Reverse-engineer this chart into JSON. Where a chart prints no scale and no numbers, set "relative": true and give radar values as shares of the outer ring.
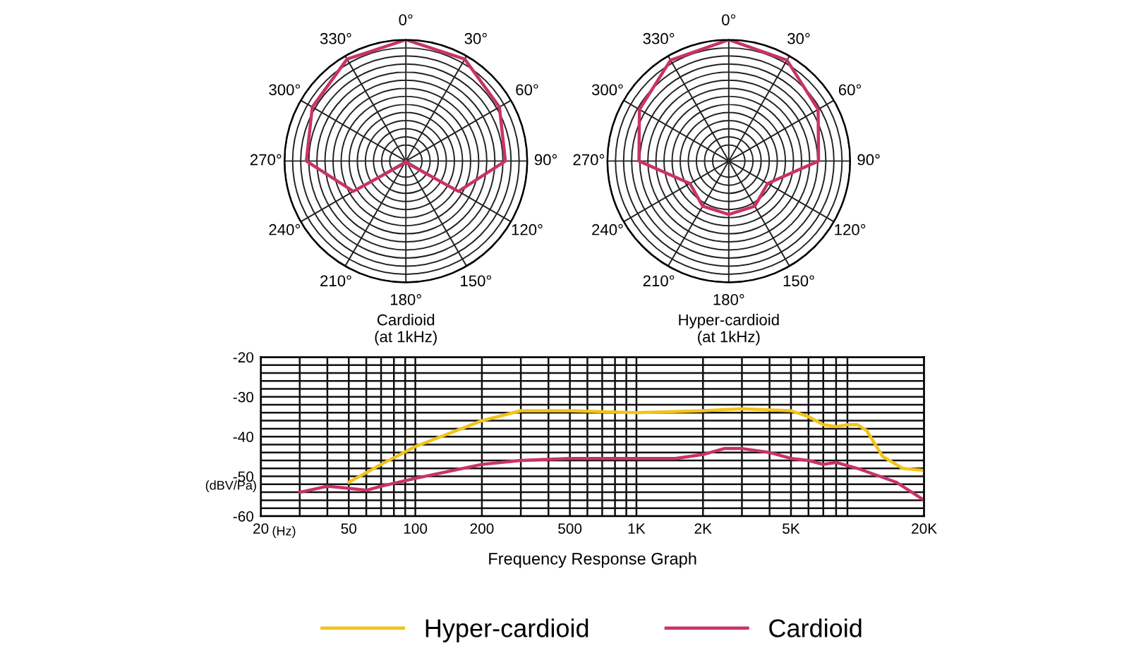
{
  "chart_data": [
    {
      "type": "radar",
      "title": "Cardioid",
      "subtitle": "(at 1kHz)",
      "relative": true,
      "grid": true,
      "categories": [
        "0°",
        "30°",
        "60°",
        "90°",
        "120°",
        "150°",
        "180°",
        "210°",
        "240°",
        "270°",
        "300°",
        "330°"
      ],
      "series": [
        {
          "color": "#c8326a",
          "values": [
            1,
            0.97,
            0.89,
            0.82,
            0.5,
            0.02,
            0,
            0.02,
            0.5,
            0.82,
            0.89,
            0.97
          ]
        }
      ]
    },
    {
      "type": "radar",
      "title": "Hyper-cardioid",
      "subtitle": "(at 1kHz)",
      "relative": true,
      "grid": true,
      "categories": [
        "0°",
        "30°",
        "60°",
        "90°",
        "120°",
        "150°",
        "180°",
        "210°",
        "240°",
        "270°",
        "300°",
        "330°"
      ],
      "series": [
        {
          "color": "#c8326a",
          "values": [
            1,
            0.96,
            0.85,
            0.74,
            0.37,
            0.43,
            0.44,
            0.43,
            0.37,
            0.74,
            0.85,
            0.96
          ]
        }
      ]
    },
    {
      "type": "line",
      "xlabel": "Frequency Response Graph",
      "ylabel": "(dBV/Pa)",
      "annotations": [
        "(Hz)"
      ],
      "log": "x",
      "grid": true,
      "legend": "bottom",
      "xlim": [
        20,
        20000
      ],
      "ylim": [
        -60,
        -20
      ],
      "xticks": [
        20,
        50,
        100,
        200,
        500,
        {
          "value": 1000,
          "label": "1K"
        },
        {
          "value": 2000,
          "label": "2K"
        },
        {
          "value": 5000,
          "label": "5K"
        },
        {
          "value": 20000,
          "label": "20K"
        }
      ],
      "yticks": [
        -20,
        -30,
        -40,
        -50,
        -60
      ],
      "series": [
        {
          "name": "Hyper-cardioid",
          "color": "#f0c419",
          "x": [
            50,
            70,
            100,
            200,
            300,
            500,
            1000,
            2000,
            3000,
            5000,
            6000,
            7000,
            8000,
            9000,
            10000,
            11000,
            13000,
            16000,
            20000
          ],
          "values": [
            -51.5,
            -47,
            -42.5,
            -36,
            -33.5,
            -33.5,
            -34,
            -33.5,
            -33,
            -33.5,
            -35,
            -37,
            -37.5,
            -37,
            -37,
            -38.5,
            -45,
            -48,
            -48.5
          ]
        },
        {
          "name": "Cardioid",
          "color": "#c8326a",
          "x": [
            30,
            40,
            50,
            60,
            70,
            100,
            200,
            300,
            500,
            1000,
            1500,
            2000,
            2500,
            3000,
            4000,
            5000,
            6000,
            7000,
            8000,
            10000,
            15000,
            20000
          ],
          "values": [
            -54,
            -52.5,
            -53,
            -53.5,
            -52.5,
            -50.5,
            -47,
            -46,
            -45.5,
            -45.5,
            -45.5,
            -44.5,
            -43,
            -43,
            -44,
            -45.5,
            -46,
            -47,
            -46.5,
            -48,
            -51.5,
            -56
          ]
        }
      ]
    }
  ]
}
